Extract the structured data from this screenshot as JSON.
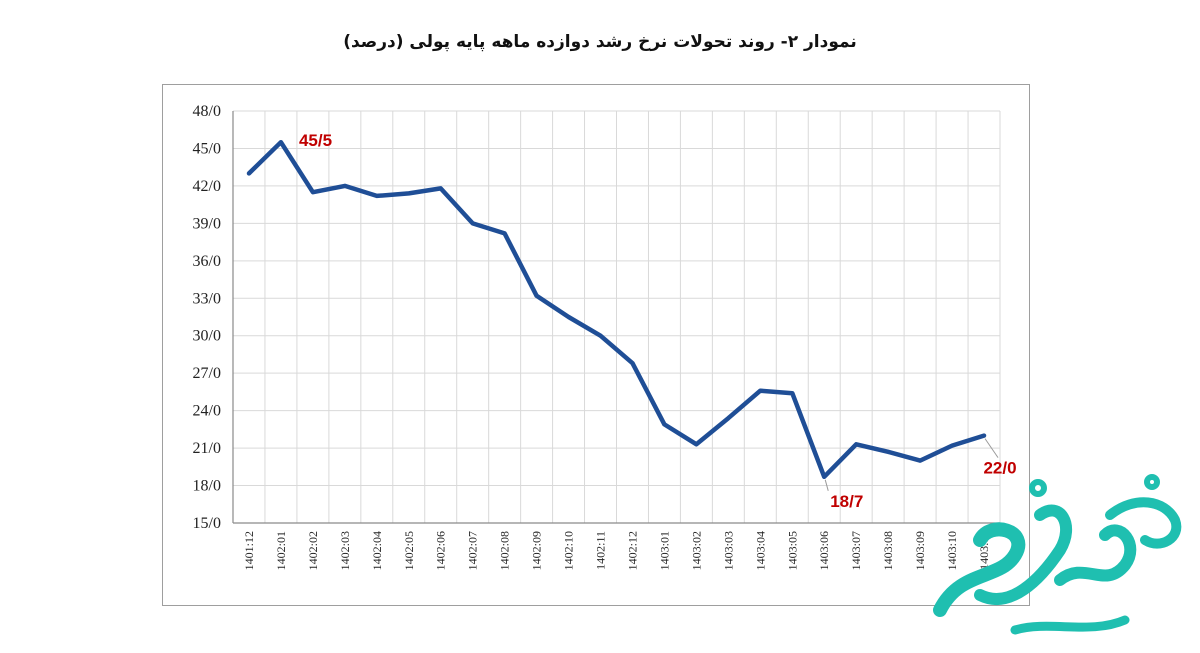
{
  "colors": {
    "line": "#1f4e96",
    "grid": "#d9d9d9",
    "label": "#c00000",
    "watermark": "#1fbfb0"
  },
  "chart_data": {
    "type": "line",
    "title": "نمودار ۲- روند تحولات نرخ رشد دوازده ماهه پایه پولی (درصد)",
    "xlabel": "",
    "ylabel": "",
    "ylim": [
      15,
      48
    ],
    "y_ticks": [
      15,
      18,
      21,
      24,
      27,
      30,
      33,
      36,
      39,
      42,
      45,
      48
    ],
    "y_tick_labels": [
      "15/0",
      "18/0",
      "21/0",
      "24/0",
      "27/0",
      "30/0",
      "33/0",
      "36/0",
      "39/0",
      "42/0",
      "45/0",
      "48/0"
    ],
    "grid": true,
    "legend": "none",
    "categories": [
      "1401:12",
      "1402:01",
      "1402:02",
      "1402:03",
      "1402:04",
      "1402:05",
      "1402:06",
      "1402:07",
      "1402:08",
      "1402:09",
      "1402:10",
      "1402:11",
      "1402:12",
      "1403:01",
      "1403:02",
      "1403:03",
      "1403:04",
      "1403:05",
      "1403:06",
      "1403:07",
      "1403:08",
      "1403:09",
      "1403:10",
      "1403:11"
    ],
    "series": [
      {
        "values": [
          43.0,
          45.5,
          41.5,
          42.0,
          41.2,
          41.4,
          41.8,
          39.0,
          38.2,
          33.2,
          31.5,
          30.0,
          27.8,
          22.9,
          21.3,
          23.4,
          25.6,
          25.4,
          18.7,
          21.3,
          20.7,
          20.0,
          21.2,
          22.0
        ]
      }
    ],
    "annotations": [
      {
        "index": 1,
        "text": "45/5"
      },
      {
        "index": 18,
        "text": "18/7"
      },
      {
        "index": 23,
        "text": "22/0"
      }
    ]
  },
  "watermark": {
    "text": "صفحه اقتصاد",
    "icon": "brand-logo"
  }
}
